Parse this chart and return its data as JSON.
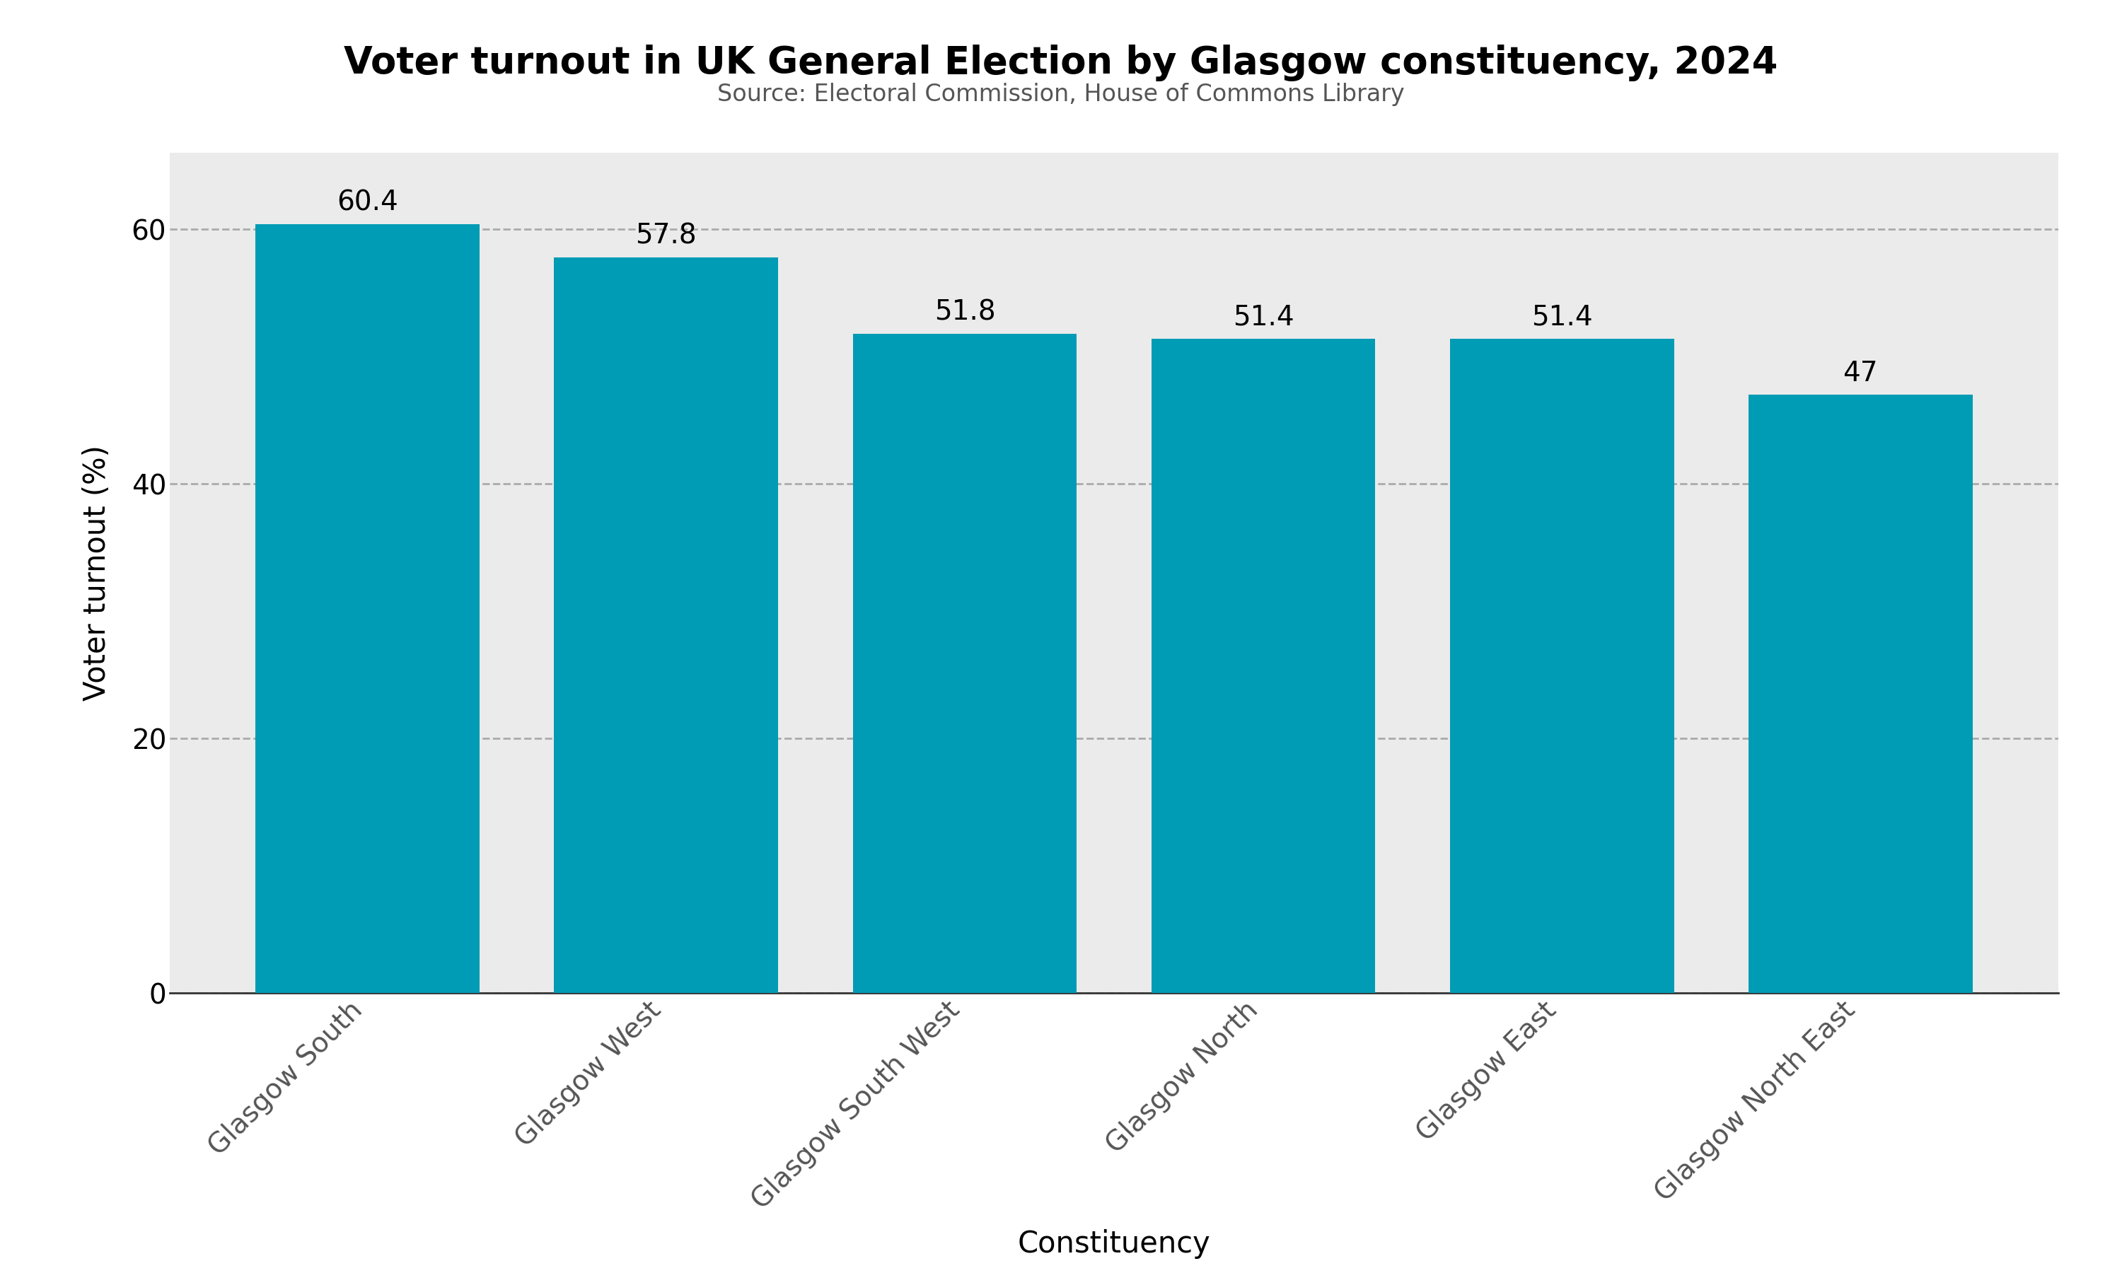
{
  "title": "Voter turnout in UK General Election by Glasgow constituency, 2024",
  "subtitle": "Source: Electoral Commission, House of Commons Library",
  "xlabel": "Constituency",
  "ylabel": "Voter turnout (%)",
  "categories": [
    "Glasgow South",
    "Glasgow West",
    "Glasgow South West",
    "Glasgow North",
    "Glasgow East",
    "Glasgow North East"
  ],
  "values": [
    60.4,
    57.8,
    51.8,
    51.4,
    51.4,
    47
  ],
  "bar_color": "#009BB4",
  "background_color": "#ebebeb",
  "figure_background": "#ffffff",
  "ylim": [
    0,
    66
  ],
  "yticks": [
    0,
    20,
    40,
    60
  ],
  "grid_color": "#aaaaaa",
  "title_fontsize": 38,
  "subtitle_fontsize": 24,
  "label_fontsize": 30,
  "tick_fontsize": 28,
  "value_fontsize": 28,
  "bar_width": 0.75
}
